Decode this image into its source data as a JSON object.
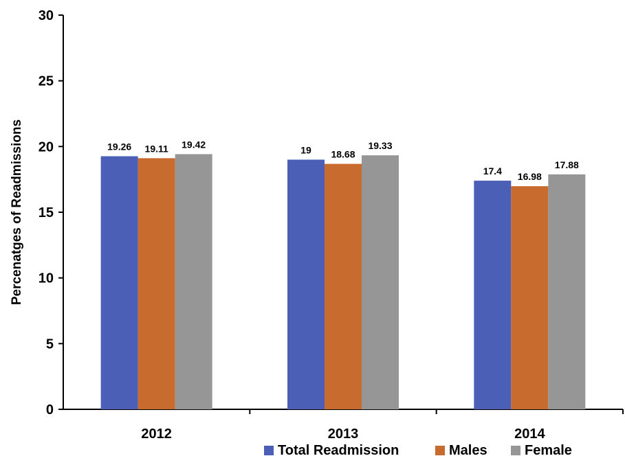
{
  "chart_data": {
    "type": "bar",
    "title": "",
    "xlabel": "",
    "ylabel": "Percenatges of Readmissions",
    "ylim": [
      0,
      30
    ],
    "yticks": [
      0,
      5,
      10,
      15,
      20,
      25,
      30
    ],
    "categories": [
      "2012",
      "2013",
      "2014"
    ],
    "series": [
      {
        "name": "Total Readmission",
        "color": "#4a5fb5",
        "values": [
          19.26,
          19,
          17.4
        ],
        "labels": [
          "19.26",
          "19",
          "17.4"
        ]
      },
      {
        "name": "Males",
        "color": "#c86b2f",
        "values": [
          19.11,
          18.68,
          16.98
        ],
        "labels": [
          "19.11",
          "18.68",
          "16.98"
        ]
      },
      {
        "name": "Female",
        "color": "#969696",
        "values": [
          19.42,
          19.33,
          17.88
        ],
        "labels": [
          "19.42",
          "19.33",
          "17.88"
        ]
      }
    ],
    "grid": false,
    "legend_position": "bottom-right"
  }
}
